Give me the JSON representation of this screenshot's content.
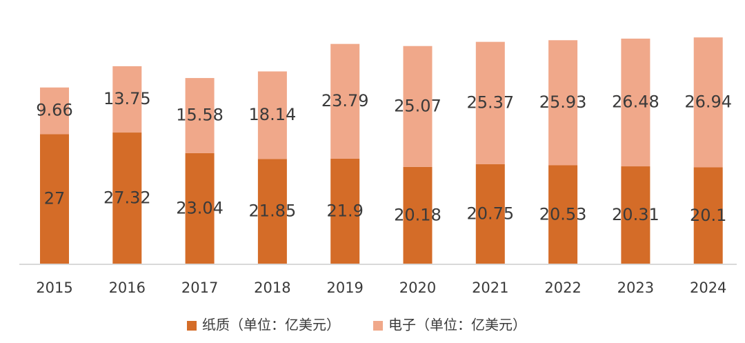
{
  "chart_data": {
    "type": "bar",
    "stacked": true,
    "categories": [
      "2015",
      "2016",
      "2017",
      "2018",
      "2019",
      "2020",
      "2021",
      "2022",
      "2023",
      "2024"
    ],
    "series": [
      {
        "name": "纸质（单位：亿美元）",
        "color": "#D46C28",
        "values": [
          27,
          27.32,
          23.04,
          21.85,
          21.9,
          20.18,
          20.75,
          20.53,
          20.31,
          20.1
        ],
        "labels": [
          "27",
          "27.32",
          "23.04",
          "21.85",
          "21.9",
          "20.18",
          "20.75",
          "20.53",
          "20.31",
          "20.1"
        ]
      },
      {
        "name": "电子（单位：亿美元）",
        "color": "#F0A88A",
        "values": [
          9.66,
          13.75,
          15.58,
          18.14,
          23.79,
          25.07,
          25.37,
          25.93,
          26.48,
          26.94
        ],
        "labels": [
          "9.66",
          "13.75",
          "15.58",
          "18.14",
          "23.79",
          "25.07",
          "25.37",
          "25.93",
          "26.48",
          "26.94"
        ]
      }
    ],
    "title": "",
    "xlabel": "",
    "ylabel": "",
    "ylim": [
      0,
      48.5
    ],
    "legend": "bottom-center"
  }
}
